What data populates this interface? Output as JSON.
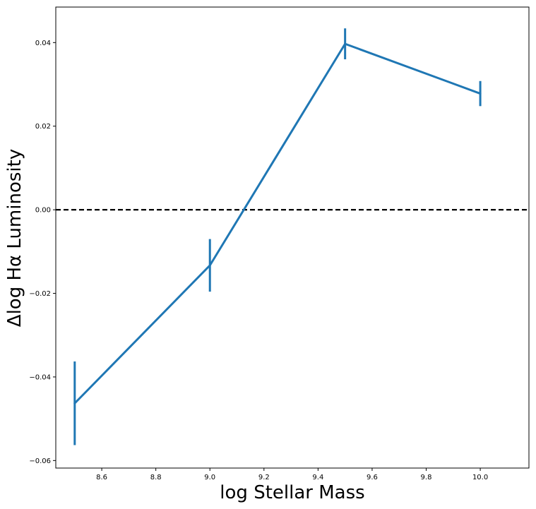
{
  "chart_data": {
    "type": "line",
    "title": "",
    "xlabel": "log Stellar Mass",
    "ylabel": "Δlog Hα Luminosity",
    "xlim": [
      8.43,
      10.18
    ],
    "ylim": [
      -0.0618,
      0.0485
    ],
    "grid": false,
    "series": [
      {
        "name": "Δlog Hα Luminosity",
        "color": "#1f77b4",
        "x": [
          8.5,
          9.0,
          9.5,
          10.0
        ],
        "y": [
          -0.0463,
          -0.0133,
          0.0397,
          0.0278
        ],
        "yerr": [
          0.01,
          0.0063,
          0.0037,
          0.003
        ]
      }
    ],
    "reference_line": {
      "y": 0.0,
      "style": "dashed",
      "color": "#000000"
    },
    "xticks": [
      {
        "value": 8.6,
        "label": "8.6"
      },
      {
        "value": 8.8,
        "label": "8.8"
      },
      {
        "value": 9.0,
        "label": "9.0"
      },
      {
        "value": 9.2,
        "label": "9.2"
      },
      {
        "value": 9.4,
        "label": "9.4"
      },
      {
        "value": 9.6,
        "label": "9.6"
      },
      {
        "value": 9.8,
        "label": "9.8"
      },
      {
        "value": 10.0,
        "label": "10.0"
      }
    ],
    "yticks": [
      {
        "value": -0.06,
        "label": "−0.06"
      },
      {
        "value": -0.04,
        "label": "−0.04"
      },
      {
        "value": -0.02,
        "label": "−0.02"
      },
      {
        "value": 0.0,
        "label": "0.00"
      },
      {
        "value": 0.02,
        "label": "0.02"
      },
      {
        "value": 0.04,
        "label": "0.04"
      }
    ]
  }
}
